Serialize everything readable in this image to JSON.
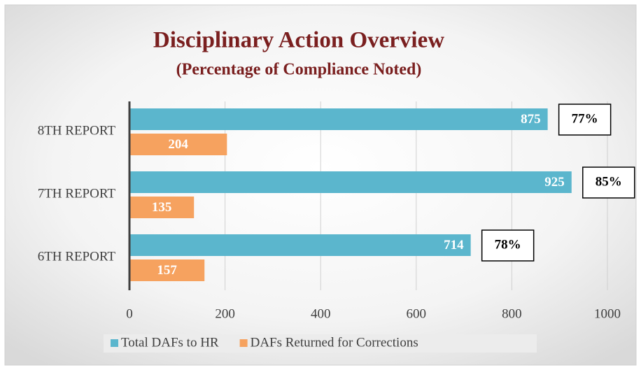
{
  "chart_data": {
    "type": "hbar",
    "title": "Disciplinary Action Overview",
    "subtitle": "(Percentage of Compliance Noted)",
    "categories": [
      "8TH REPORT",
      "7TH REPORT",
      "6TH REPORT"
    ],
    "series": [
      {
        "name": "Total DAFs to HR",
        "color": "#5bb6cd",
        "values": [
          875,
          925,
          714
        ]
      },
      {
        "name": "DAFs Returned for Corrections",
        "color": "#f6a25f",
        "values": [
          204,
          135,
          157
        ]
      }
    ],
    "annotations": [
      "77%",
      "85%",
      "78%"
    ],
    "xlim": [
      0,
      1000
    ],
    "xticks": [
      0,
      200,
      400,
      600,
      800,
      1000
    ],
    "grid": true,
    "legend": "bottom"
  }
}
